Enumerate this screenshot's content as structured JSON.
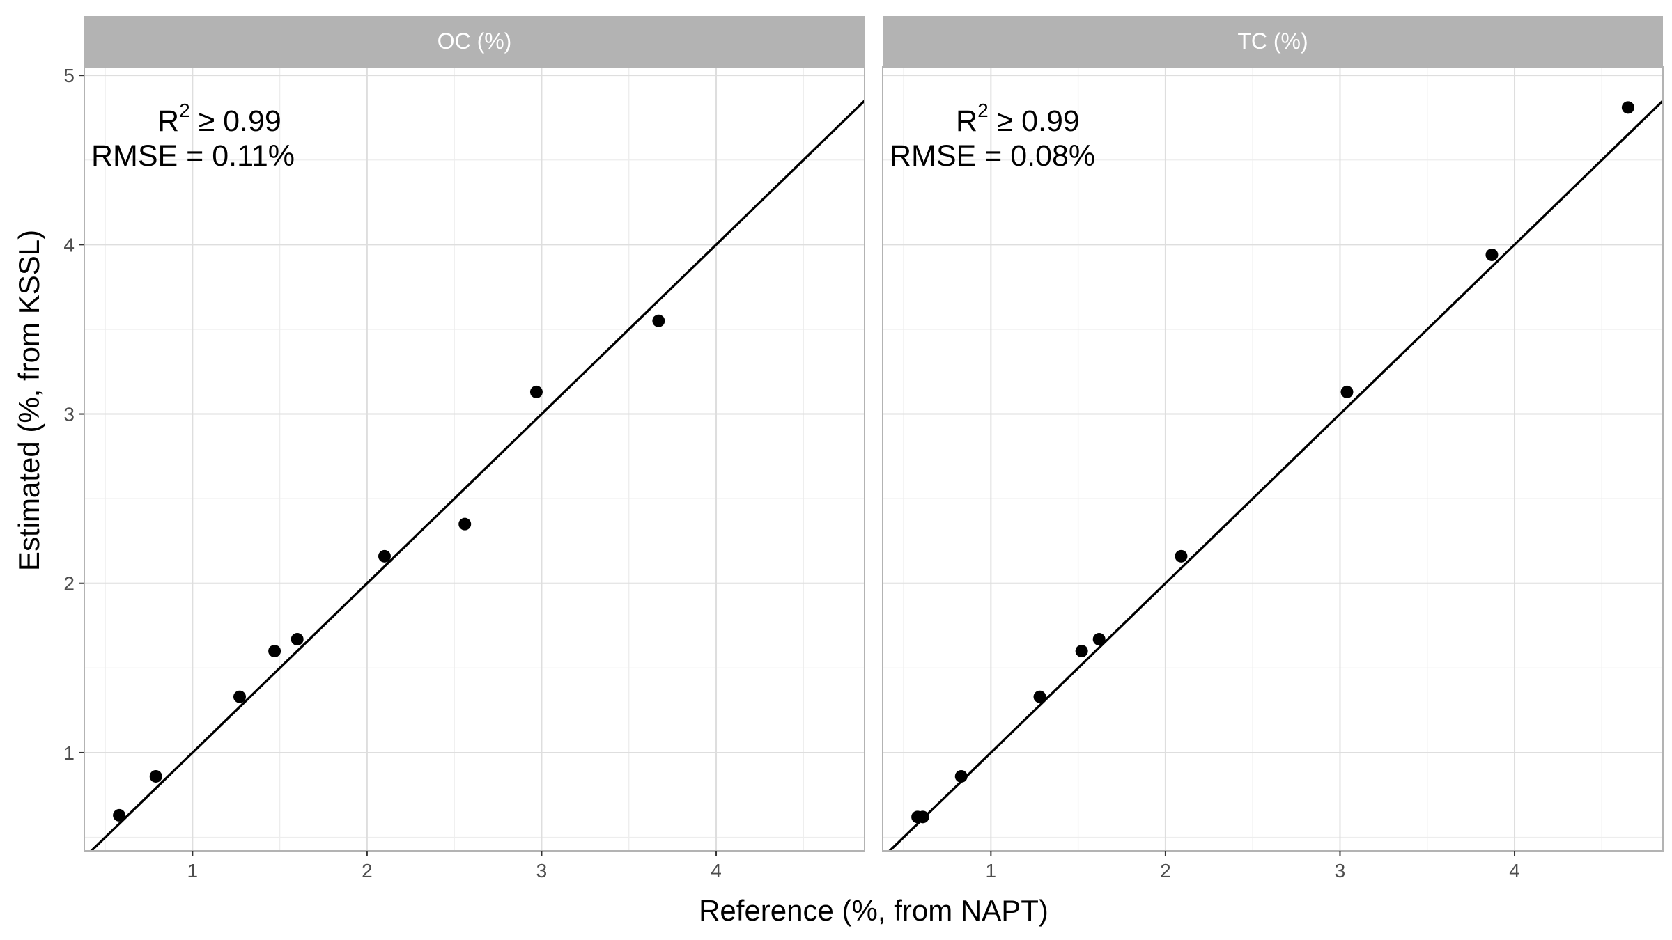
{
  "chart_data": [
    {
      "type": "scatter",
      "panel": "OC (%)",
      "title": "OC (%)",
      "xlabel": "Reference (%, from NAPT)",
      "ylabel": "Estimated (%, from KSSL)",
      "xlim": [
        0.38,
        4.85
      ],
      "ylim": [
        0.42,
        5.05
      ],
      "xticks": [
        "1",
        "2",
        "3",
        "4"
      ],
      "yticks": [
        "1",
        "2",
        "3",
        "4",
        "5"
      ],
      "grid": true,
      "points": [
        {
          "x": 0.58,
          "y": 0.63
        },
        {
          "x": 0.79,
          "y": 0.86
        },
        {
          "x": 1.27,
          "y": 1.33
        },
        {
          "x": 1.47,
          "y": 1.6
        },
        {
          "x": 1.6,
          "y": 1.67
        },
        {
          "x": 2.1,
          "y": 2.16
        },
        {
          "x": 2.56,
          "y": 2.35
        },
        {
          "x": 2.97,
          "y": 3.13
        },
        {
          "x": 3.67,
          "y": 3.55
        }
      ],
      "fit_line": {
        "slope": 1.0,
        "intercept": 0.0
      },
      "annotation": {
        "r2_prefix": "R",
        "r2_sup": "2",
        "r2_rest": " ≥ 0.99",
        "rmse": "RMSE = 0.11%"
      }
    },
    {
      "type": "scatter",
      "panel": "TC (%)",
      "title": "TC (%)",
      "xlabel": "Reference (%, from NAPT)",
      "ylabel": "Estimated (%, from KSSL)",
      "xlim": [
        0.38,
        4.85
      ],
      "ylim": [
        0.42,
        5.05
      ],
      "xticks": [
        "1",
        "2",
        "3",
        "4"
      ],
      "yticks": [
        "1",
        "2",
        "3",
        "4",
        "5"
      ],
      "grid": true,
      "points": [
        {
          "x": 0.58,
          "y": 0.62
        },
        {
          "x": 0.61,
          "y": 0.62
        },
        {
          "x": 0.83,
          "y": 0.86
        },
        {
          "x": 1.28,
          "y": 1.33
        },
        {
          "x": 1.52,
          "y": 1.6
        },
        {
          "x": 1.62,
          "y": 1.67
        },
        {
          "x": 2.09,
          "y": 2.16
        },
        {
          "x": 3.04,
          "y": 3.13
        },
        {
          "x": 3.87,
          "y": 3.94
        },
        {
          "x": 4.65,
          "y": 4.81
        }
      ],
      "fit_line": {
        "slope": 1.0,
        "intercept": 0.0
      },
      "annotation": {
        "r2_prefix": "R",
        "r2_sup": "2",
        "r2_rest": " ≥ 0.99",
        "rmse": "RMSE = 0.08%"
      }
    }
  ],
  "axes": {
    "xlabel": "Reference (%, from NAPT)",
    "ylabel": "Estimated (%, from KSSL)"
  },
  "colors": {
    "strip": "#b3b3b3",
    "grid_major": "#dedede",
    "grid_minor": "#ededed",
    "border": "#b3b3b3",
    "point": "#000000",
    "line": "#000000"
  }
}
